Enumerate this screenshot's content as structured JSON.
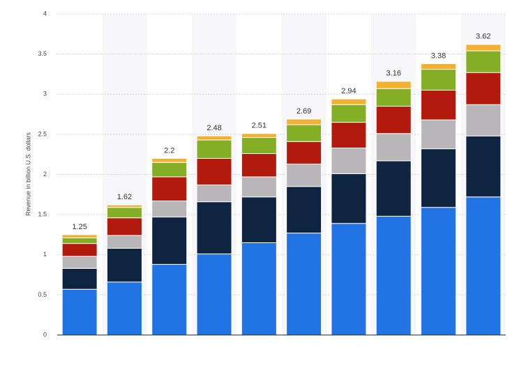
{
  "chart_data": {
    "type": "stacked_bar",
    "y_label": "Revenue in billion U.S. dollars",
    "categories": [
      null,
      null,
      null,
      null,
      null,
      null,
      null,
      null,
      null,
      null
    ],
    "series": [
      {
        "color": "#2273e3",
        "values": [
          0.57,
          0.66,
          0.88,
          1.01,
          1.15,
          1.27,
          1.39,
          1.48,
          1.59,
          1.72
        ]
      },
      {
        "color": "#0e2440",
        "values": [
          0.26,
          0.42,
          0.59,
          0.65,
          0.57,
          0.58,
          0.62,
          0.69,
          0.73,
          0.76
        ]
      },
      {
        "color": "#b8b6b9",
        "values": [
          0.15,
          0.16,
          0.2,
          0.21,
          0.25,
          0.28,
          0.32,
          0.34,
          0.36,
          0.39
        ]
      },
      {
        "color": "#b11a0c",
        "values": [
          0.16,
          0.22,
          0.3,
          0.33,
          0.29,
          0.28,
          0.32,
          0.34,
          0.37,
          0.4
        ]
      },
      {
        "color": "#84ae25",
        "values": [
          0.07,
          0.13,
          0.18,
          0.23,
          0.2,
          0.21,
          0.22,
          0.22,
          0.26,
          0.27
        ]
      },
      {
        "color": "#f2b130",
        "values": [
          0.04,
          0.03,
          0.05,
          0.05,
          0.05,
          0.07,
          0.07,
          0.09,
          0.07,
          0.08
        ]
      }
    ],
    "totals": [
      1.25,
      1.62,
      2.2,
      2.48,
      2.51,
      2.69,
      2.94,
      3.16,
      3.38,
      3.62
    ],
    "ylim": [
      0,
      4
    ],
    "yticks": [
      0,
      0.5,
      1,
      1.5,
      2,
      2.5,
      3,
      3.5,
      4
    ],
    "grid": true
  }
}
